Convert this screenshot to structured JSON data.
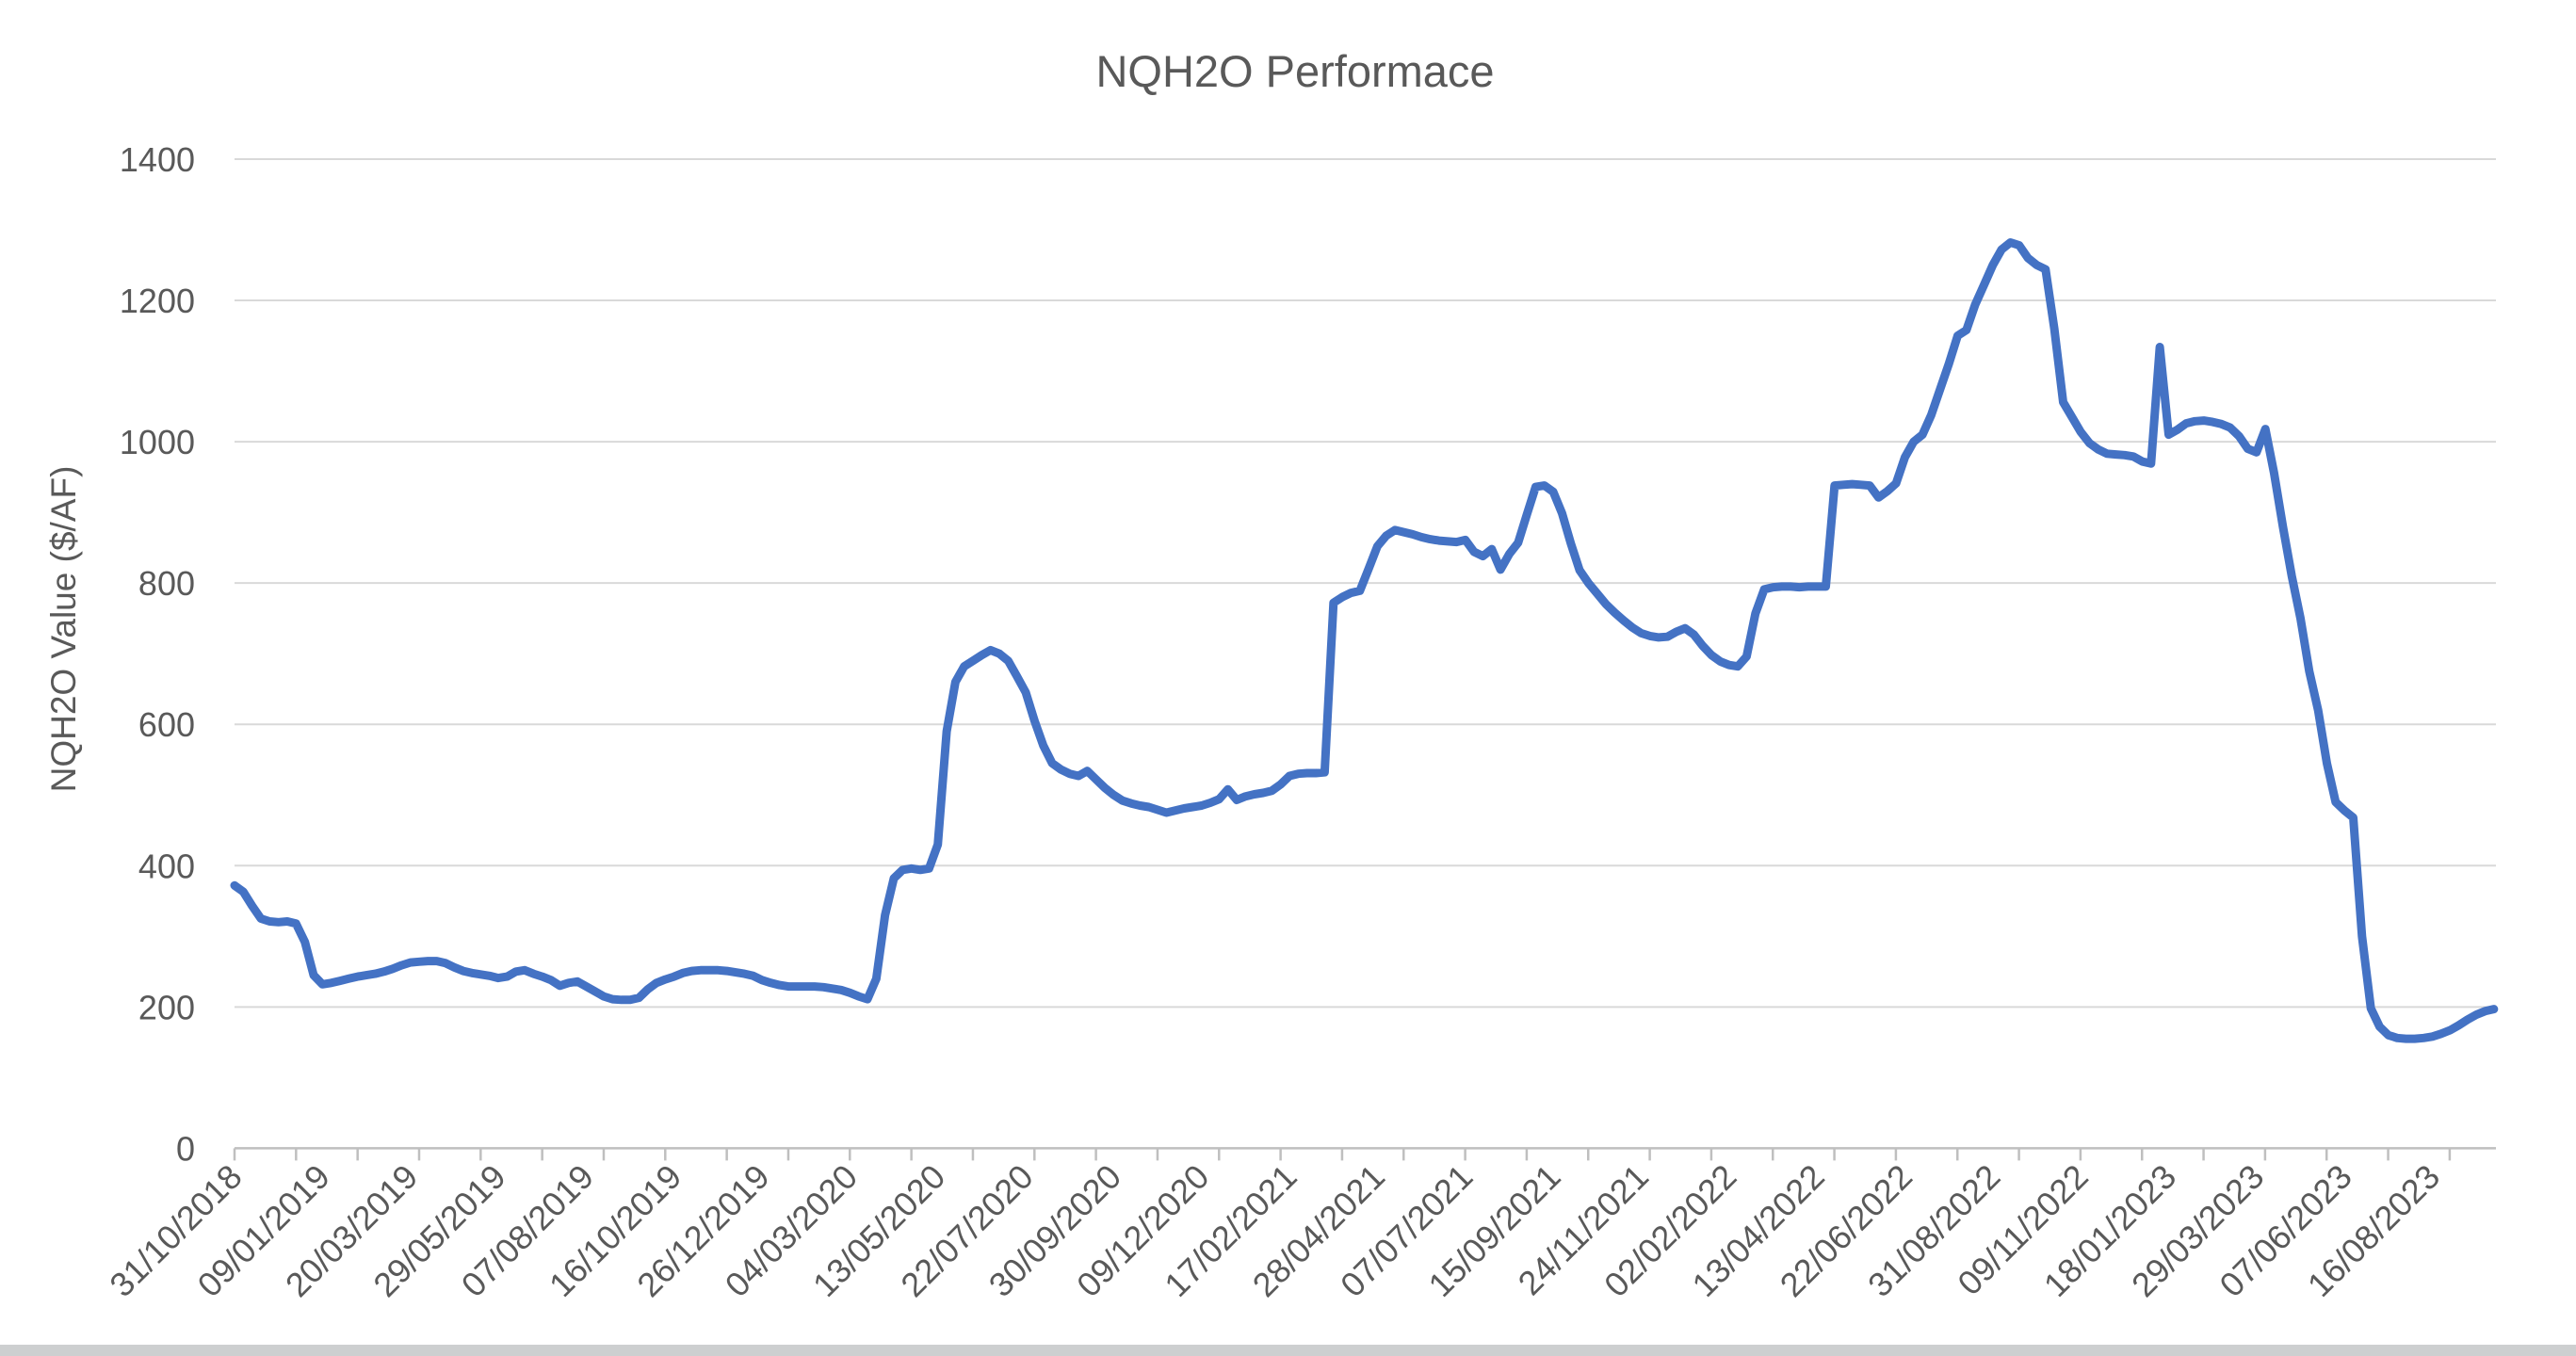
{
  "window": {
    "background": "#ffffff",
    "bottom_edge_color": "#cdcfd0"
  },
  "colors": {
    "series_line": "#4472C4",
    "gridline": "#D9D9D9",
    "axis_line": "#BFBFBF",
    "text": "#595959"
  },
  "chart_data": {
    "type": "line",
    "title": "NQH2O Performace",
    "xlabel": "",
    "ylabel": "NQH2O Value ($/AF)",
    "ylim": [
      0,
      1400
    ],
    "y_tick_interval": 200,
    "y_tick_labels": [
      "0",
      "200",
      "400",
      "600",
      "800",
      "1000",
      "1200",
      "1400"
    ],
    "grid": "horizontal",
    "legend": "none",
    "x_label_interval_weeks": 10,
    "x_tick_labels": [
      "31/10/2018",
      "09/01/2019",
      "20/03/2019",
      "29/05/2019",
      "07/08/2019",
      "16/10/2019",
      "26/12/2019",
      "04/03/2020",
      "13/05/2020",
      "22/07/2020",
      "30/09/2020",
      "09/12/2020",
      "17/02/2021",
      "28/04/2021",
      "07/07/2021",
      "15/09/2021",
      "24/11/2021",
      "02/02/2022",
      "13/04/2022",
      "22/06/2022",
      "31/08/2022",
      "09/11/2022",
      "18/01/2023",
      "29/03/2023",
      "07/06/2023",
      "16/08/2023"
    ],
    "series": [
      {
        "name": "NQH2O",
        "color": "#4472C4",
        "cadence": "weekly",
        "values": [
          372,
          363,
          343,
          325,
          321,
          320,
          321,
          318,
          292,
          245,
          232,
          234,
          237,
          240,
          243,
          245,
          247,
          250,
          254,
          259,
          263,
          264,
          265,
          265,
          262,
          256,
          251,
          248,
          246,
          244,
          241,
          243,
          250,
          252,
          247,
          243,
          238,
          230,
          234,
          236,
          229,
          222,
          215,
          211,
          210,
          210,
          213,
          225,
          234,
          239,
          243,
          248,
          251,
          252,
          252,
          252,
          251,
          249,
          247,
          244,
          238,
          234,
          231,
          229,
          229,
          229,
          229,
          228,
          226,
          224,
          220,
          215,
          211,
          240,
          330,
          382,
          394,
          396,
          394,
          396,
          430,
          590,
          660,
          682,
          690,
          698,
          705,
          700,
          690,
          668,
          645,
          605,
          570,
          545,
          536,
          530,
          527,
          534,
          522,
          510,
          500,
          492,
          488,
          485,
          483,
          479,
          475,
          478,
          481,
          483,
          485,
          489,
          494,
          508,
          493,
          498,
          501,
          503,
          506,
          515,
          527,
          530,
          531,
          531,
          532,
          772,
          780,
          786,
          789,
          820,
          852,
          867,
          875,
          872,
          869,
          865,
          862,
          860,
          859,
          858,
          861,
          844,
          838,
          848,
          819,
          841,
          857,
          897,
          936,
          938,
          929,
          899,
          856,
          818,
          800,
          785,
          770,
          758,
          747,
          737,
          729,
          725,
          723,
          724,
          731,
          736,
          727,
          711,
          698,
          689,
          684,
          682,
          696,
          757,
          791,
          794,
          795,
          795,
          794,
          795,
          795,
          795,
          938,
          939,
          940,
          939,
          938,
          921,
          930,
          941,
          978,
          1000,
          1010,
          1038,
          1074,
          1110,
          1150,
          1158,
          1194,
          1222,
          1250,
          1272,
          1282,
          1278,
          1260,
          1250,
          1244,
          1160,
          1056,
          1035,
          1014,
          998,
          989,
          983,
          982,
          981,
          979,
          972,
          969,
          1134,
          1010,
          1017,
          1026,
          1029,
          1030,
          1028,
          1025,
          1020,
          1008,
          990,
          985,
          1018,
          955,
          880,
          810,
          750,
          675,
          620,
          545,
          490,
          478,
          468,
          300,
          198,
          172,
          160,
          156,
          155,
          155,
          156,
          158,
          162,
          167,
          174,
          182,
          189,
          194,
          197
        ]
      }
    ]
  }
}
